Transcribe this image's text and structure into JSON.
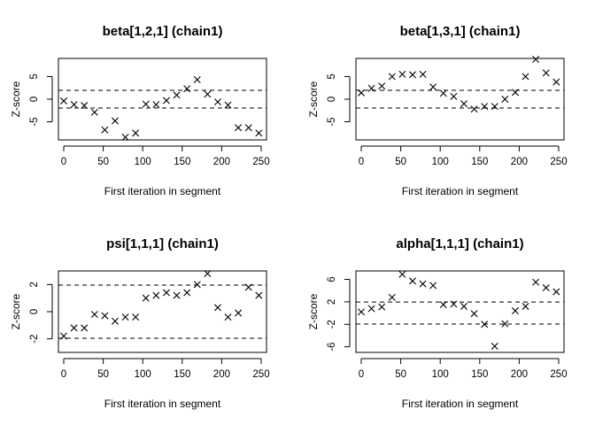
{
  "chart_data": [
    {
      "type": "scatter",
      "title": "beta[1,2,1] (chain1)",
      "xlabel": "First iteration in segment",
      "ylabel": "Z-score",
      "xlim": [
        0,
        250
      ],
      "ylim": [
        -9,
        9
      ],
      "xticks": [
        0,
        50,
        100,
        150,
        200,
        250
      ],
      "yticks": [
        -5,
        0,
        5
      ],
      "ref_lines": [
        -1.96,
        1.96
      ],
      "marker": "x",
      "x": [
        0,
        13,
        26,
        39,
        52,
        65,
        78,
        91,
        104,
        117,
        130,
        143,
        156,
        169,
        182,
        195,
        208,
        221,
        234,
        247
      ],
      "y": [
        -0.4,
        -1.2,
        -1.4,
        -2.9,
        -6.8,
        -4.8,
        -8.4,
        -7.5,
        -1.1,
        -1.2,
        -0.3,
        0.9,
        2.3,
        4.3,
        1.1,
        -0.6,
        -1.3,
        -6.3,
        -6.3,
        -7.5
      ]
    },
    {
      "type": "scatter",
      "title": "beta[1,3,1] (chain1)",
      "xlabel": "First iteration in segment",
      "ylabel": "Z-score",
      "xlim": [
        0,
        250
      ],
      "ylim": [
        -9,
        9
      ],
      "xticks": [
        0,
        50,
        100,
        150,
        200,
        250
      ],
      "yticks": [
        -5,
        0,
        5
      ],
      "ref_lines": [
        -1.96,
        1.96
      ],
      "marker": "x",
      "x": [
        0,
        13,
        26,
        39,
        52,
        65,
        78,
        91,
        104,
        117,
        130,
        143,
        156,
        169,
        182,
        195,
        208,
        221,
        234,
        247
      ],
      "y": [
        1.4,
        2.4,
        2.9,
        5.0,
        5.5,
        5.4,
        5.5,
        2.7,
        1.3,
        0.6,
        -1.0,
        -2.2,
        -1.6,
        -1.6,
        0.0,
        1.5,
        5.0,
        8.8,
        5.8,
        3.8
      ]
    },
    {
      "type": "scatter",
      "title": "psi[1,1,1] (chain1)",
      "xlabel": "First iteration in segment",
      "ylabel": "Z-score",
      "xlim": [
        0,
        250
      ],
      "ylim": [
        -3,
        3
      ],
      "xticks": [
        0,
        50,
        100,
        150,
        200,
        250
      ],
      "yticks": [
        -2,
        0,
        2
      ],
      "ref_lines": [
        -1.96,
        1.96
      ],
      "marker": "x",
      "x": [
        0,
        13,
        26,
        39,
        52,
        65,
        78,
        91,
        104,
        117,
        130,
        143,
        156,
        169,
        182,
        195,
        208,
        221,
        234,
        247
      ],
      "y": [
        -1.8,
        -1.2,
        -1.2,
        -0.2,
        -0.3,
        -0.7,
        -0.4,
        -0.4,
        1.0,
        1.2,
        1.4,
        1.2,
        1.4,
        2.0,
        2.8,
        0.3,
        -0.4,
        -0.1,
        1.8,
        1.2
      ]
    },
    {
      "type": "scatter",
      "title": "alpha[1,1,1] (chain1)",
      "xlabel": "First iteration in segment",
      "ylabel": "Z-score",
      "xlim": [
        0,
        250
      ],
      "ylim": [
        -7,
        7.5
      ],
      "xticks": [
        0,
        50,
        100,
        150,
        200,
        250
      ],
      "yticks": [
        -6,
        -2,
        2,
        6
      ],
      "ref_lines": [
        -1.96,
        1.96
      ],
      "marker": "x",
      "x": [
        0,
        13,
        26,
        39,
        52,
        65,
        78,
        91,
        104,
        117,
        130,
        143,
        156,
        169,
        182,
        195,
        208,
        221,
        234,
        247
      ],
      "y": [
        0.2,
        0.8,
        1.1,
        2.8,
        6.9,
        5.7,
        5.2,
        4.9,
        1.5,
        1.6,
        1.2,
        -0.1,
        -2.0,
        -5.9,
        -1.9,
        0.4,
        1.2,
        5.5,
        4.5,
        3.8
      ]
    }
  ]
}
